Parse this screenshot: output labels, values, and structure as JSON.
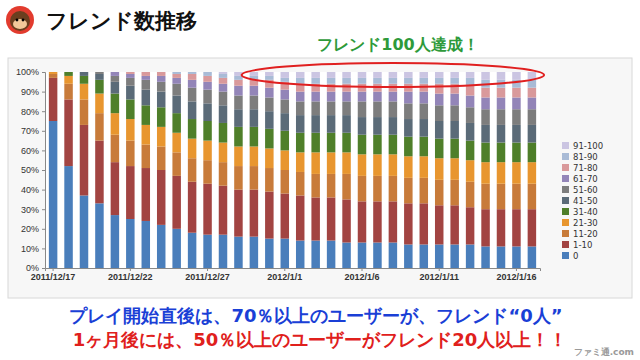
{
  "chart_data": {
    "type": "bar",
    "title": "フレンド数推移",
    "annotations": [
      "フレンド100人達成！",
      "プレイ開始直後は、70％以上のユーザーが、フレンド“0人”",
      "1ヶ月後には、50％以上のユーザーがフレンド20人以上！！",
      "ファミ通.com"
    ],
    "stacked": true,
    "legend": "right",
    "grid": false,
    "categories": [
      "2011/12/17",
      null,
      null,
      null,
      null,
      "2011/12/22",
      null,
      null,
      null,
      null,
      "2011/12/27",
      null,
      null,
      null,
      null,
      "2012/1/1",
      null,
      null,
      null,
      null,
      "2012/1/6",
      null,
      null,
      null,
      null,
      "2012/1/11",
      null,
      null,
      null,
      null,
      "2012/1/16",
      null
    ],
    "ylim": [
      0,
      100
    ],
    "yticks": [
      {
        "value": 0,
        "label": "0%"
      },
      {
        "value": 10,
        "label": "10%"
      },
      {
        "value": 20,
        "label": "20%"
      },
      {
        "value": 30,
        "label": "30%"
      },
      {
        "value": 40,
        "label": "40%"
      },
      {
        "value": 50,
        "label": "50%"
      },
      {
        "value": 60,
        "label": "60%"
      },
      {
        "value": 70,
        "label": "70%"
      },
      {
        "value": 80,
        "label": "80%"
      },
      {
        "value": 90,
        "label": "90%"
      },
      {
        "value": 100,
        "label": "100%"
      }
    ],
    "series": [
      {
        "name": "0",
        "color": "#4a7ebb",
        "values": [
          75,
          52,
          37,
          33,
          27,
          25,
          24,
          22,
          20,
          18,
          17,
          17,
          16,
          16,
          15,
          15,
          14,
          14,
          14,
          13,
          13,
          13,
          13,
          12,
          12,
          12,
          12,
          12,
          11,
          11,
          11,
          11
        ]
      },
      {
        "name": "1-10",
        "color": "#a24442",
        "values": [
          22,
          34,
          36,
          32,
          27,
          27,
          27,
          28,
          27,
          26,
          26,
          25,
          24,
          24,
          24,
          23,
          23,
          22,
          22,
          22,
          21,
          21,
          21,
          21,
          21,
          20,
          20,
          19,
          19,
          19,
          19,
          19
        ]
      },
      {
        "name": "11-20",
        "color": "#c87b3a",
        "values": [
          2,
          8,
          13,
          14,
          14,
          13,
          12,
          12,
          12,
          12,
          12,
          12,
          12,
          12,
          12,
          12,
          12,
          12,
          12,
          13,
          13,
          13,
          13,
          13,
          13,
          13,
          13,
          13,
          13,
          13,
          13,
          13
        ]
      },
      {
        "name": "21-30",
        "color": "#e8962f",
        "values": [
          1,
          4,
          8,
          10,
          11,
          11,
          10,
          10,
          10,
          10,
          10,
          10,
          10,
          10,
          10,
          10,
          10,
          11,
          11,
          11,
          11,
          11,
          11,
          11,
          11,
          11,
          11,
          11,
          11,
          11,
          11,
          11
        ]
      },
      {
        "name": "31-40",
        "color": "#4f7f2a",
        "values": [
          0,
          2,
          4,
          7,
          10,
          10,
          10,
          10,
          10,
          10,
          10,
          10,
          10,
          10,
          10,
          10,
          10,
          10,
          10,
          10,
          10,
          10,
          10,
          10,
          10,
          10,
          10,
          10,
          10,
          10,
          10,
          10
        ]
      },
      {
        "name": "41-50",
        "color": "#5b6b78",
        "values": [
          0,
          0,
          2,
          3,
          6,
          7,
          8,
          8,
          9,
          9,
          9,
          9,
          9,
          9,
          9,
          9,
          9,
          9,
          9,
          9,
          9,
          9,
          9,
          9,
          9,
          9,
          9,
          9,
          9,
          9,
          9,
          9
        ]
      },
      {
        "name": "51-60",
        "color": "#7d7d7d",
        "values": [
          0,
          0,
          0,
          1,
          3,
          4,
          5,
          5,
          6,
          7,
          7,
          7,
          7,
          7,
          7,
          7,
          7,
          7,
          7,
          7,
          8,
          8,
          8,
          8,
          8,
          8,
          8,
          8,
          8,
          8,
          8,
          8
        ]
      },
      {
        "name": "61-70",
        "color": "#9385b8",
        "values": [
          0,
          0,
          0,
          0,
          2,
          2,
          2,
          3,
          3,
          4,
          4,
          4,
          5,
          5,
          5,
          5,
          5,
          5,
          5,
          5,
          5,
          5,
          5,
          6,
          6,
          6,
          6,
          6,
          6,
          6,
          6,
          6
        ]
      },
      {
        "name": "71-80",
        "color": "#d9999b",
        "values": [
          0,
          0,
          0,
          0,
          0,
          1,
          2,
          2,
          2,
          3,
          3,
          3,
          3,
          3,
          4,
          4,
          4,
          4,
          4,
          4,
          4,
          4,
          4,
          4,
          4,
          5,
          5,
          5,
          5,
          5,
          5,
          5
        ]
      },
      {
        "name": "81-90",
        "color": "#a9bbd6",
        "values": [
          0,
          0,
          0,
          0,
          0,
          0,
          0,
          0,
          1,
          1,
          2,
          2,
          2,
          2,
          2,
          2,
          3,
          3,
          3,
          3,
          3,
          3,
          3,
          3,
          3,
          3,
          3,
          4,
          4,
          4,
          4,
          4
        ]
      },
      {
        "name": "91-100",
        "color": "#cbc5e2",
        "values": [
          0,
          0,
          0,
          0,
          0,
          0,
          0,
          0,
          0,
          0,
          0,
          1,
          2,
          2,
          2,
          3,
          3,
          3,
          3,
          3,
          3,
          3,
          3,
          3,
          3,
          3,
          3,
          3,
          4,
          4,
          4,
          4
        ]
      }
    ]
  }
}
